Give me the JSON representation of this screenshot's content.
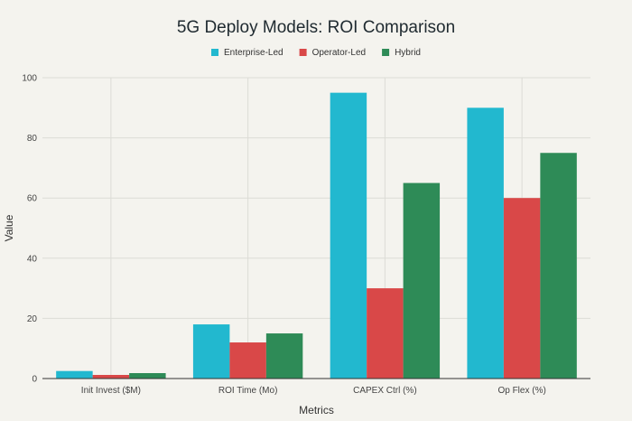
{
  "chart_data": {
    "type": "bar",
    "title": "5G Deploy Models: ROI Comparison",
    "xlabel": "Metrics",
    "ylabel": "Value",
    "ylim": [
      0,
      100
    ],
    "yticks": [
      0,
      20,
      40,
      60,
      80,
      100
    ],
    "grid": true,
    "legend_position": "top-center",
    "categories": [
      "Init Invest ($M)",
      "ROI Time (Mo)",
      "CAPEX Ctrl (%)",
      "Op Flex (%)"
    ],
    "series": [
      {
        "name": "Enterprise-Led",
        "color": "#22b8cf",
        "values": [
          2.5,
          18,
          95,
          90
        ]
      },
      {
        "name": "Operator-Led",
        "color": "#d94848",
        "values": [
          1.2,
          12,
          30,
          60
        ]
      },
      {
        "name": "Hybrid",
        "color": "#2e8b57",
        "values": [
          1.8,
          15,
          65,
          75
        ]
      }
    ]
  }
}
